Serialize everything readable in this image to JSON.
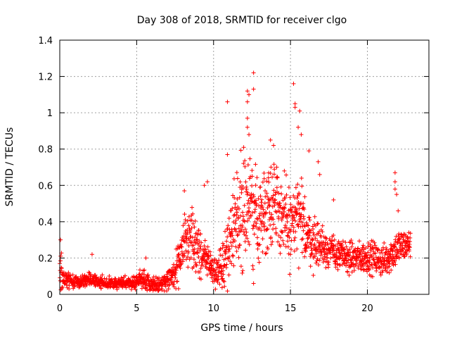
{
  "chart_data": {
    "type": "scatter",
    "title": "Day 308 of 2018, SRMTID for receiver clgo",
    "xlabel": "GPS time / hours",
    "ylabel": "SRMTID / TECUs",
    "xlim": [
      0,
      24
    ],
    "ylim": [
      0,
      1.4
    ],
    "xticks": [
      "0",
      "5",
      "10",
      "15",
      "20"
    ],
    "yticks": [
      "0",
      "0.2",
      "0.4",
      "0.6",
      "0.8",
      "1",
      "1.2",
      "1.4"
    ],
    "grid": true,
    "marker": "+",
    "color": "#ff0000",
    "series": [
      {
        "name": "SRMTID",
        "trend_x": [
          0,
          0.3,
          1,
          2,
          3,
          4,
          5,
          5.5,
          6,
          6.5,
          7,
          7.5,
          8,
          8.5,
          9,
          9.5,
          10,
          10.5,
          11,
          11.5,
          12,
          12.5,
          13,
          13.5,
          14,
          14.5,
          15,
          15.5,
          16,
          16.5,
          17,
          17.5,
          18,
          18.5,
          19,
          19.5,
          20,
          20.5,
          21,
          21.5,
          22,
          22.5,
          22.8
        ],
        "trend_y": [
          0.14,
          0.09,
          0.07,
          0.08,
          0.06,
          0.06,
          0.07,
          0.08,
          0.06,
          0.05,
          0.08,
          0.12,
          0.25,
          0.3,
          0.25,
          0.2,
          0.12,
          0.14,
          0.3,
          0.42,
          0.5,
          0.45,
          0.42,
          0.48,
          0.55,
          0.4,
          0.38,
          0.42,
          0.35,
          0.28,
          0.27,
          0.25,
          0.22,
          0.21,
          0.2,
          0.2,
          0.21,
          0.2,
          0.18,
          0.22,
          0.26,
          0.27,
          0.28
        ],
        "spread_y": [
          0.1,
          0.04,
          0.03,
          0.03,
          0.025,
          0.025,
          0.03,
          0.04,
          0.03,
          0.03,
          0.04,
          0.06,
          0.12,
          0.12,
          0.12,
          0.09,
          0.06,
          0.09,
          0.16,
          0.2,
          0.25,
          0.22,
          0.2,
          0.2,
          0.2,
          0.16,
          0.18,
          0.18,
          0.14,
          0.1,
          0.09,
          0.08,
          0.07,
          0.07,
          0.07,
          0.07,
          0.07,
          0.07,
          0.07,
          0.08,
          0.08,
          0.07,
          0.06
        ],
        "outliers": [
          {
            "x": 0.05,
            "y": 0.3
          },
          {
            "x": 2.1,
            "y": 0.22
          },
          {
            "x": 5.6,
            "y": 0.2
          },
          {
            "x": 8.1,
            "y": 0.57
          },
          {
            "x": 9.4,
            "y": 0.6
          },
          {
            "x": 9.6,
            "y": 0.62
          },
          {
            "x": 10.9,
            "y": 1.06
          },
          {
            "x": 10.9,
            "y": 0.77
          },
          {
            "x": 12.2,
            "y": 1.12
          },
          {
            "x": 12.3,
            "y": 1.1
          },
          {
            "x": 12.2,
            "y": 1.06
          },
          {
            "x": 12.2,
            "y": 0.97
          },
          {
            "x": 12.2,
            "y": 0.92
          },
          {
            "x": 12.3,
            "y": 0.88
          },
          {
            "x": 12.6,
            "y": 1.22
          },
          {
            "x": 12.6,
            "y": 1.13
          },
          {
            "x": 12.6,
            "y": 0.06
          },
          {
            "x": 13.7,
            "y": 0.85
          },
          {
            "x": 13.9,
            "y": 0.82
          },
          {
            "x": 15.2,
            "y": 1.16
          },
          {
            "x": 15.3,
            "y": 1.05
          },
          {
            "x": 15.3,
            "y": 1.03
          },
          {
            "x": 15.6,
            "y": 1.01
          },
          {
            "x": 15.5,
            "y": 0.92
          },
          {
            "x": 15.7,
            "y": 0.88
          },
          {
            "x": 16.2,
            "y": 0.79
          },
          {
            "x": 16.8,
            "y": 0.73
          },
          {
            "x": 16.9,
            "y": 0.66
          },
          {
            "x": 17.8,
            "y": 0.52
          },
          {
            "x": 21.8,
            "y": 0.67
          },
          {
            "x": 21.8,
            "y": 0.62
          },
          {
            "x": 21.8,
            "y": 0.58
          },
          {
            "x": 21.9,
            "y": 0.55
          },
          {
            "x": 22.0,
            "y": 0.46
          }
        ]
      }
    ]
  }
}
